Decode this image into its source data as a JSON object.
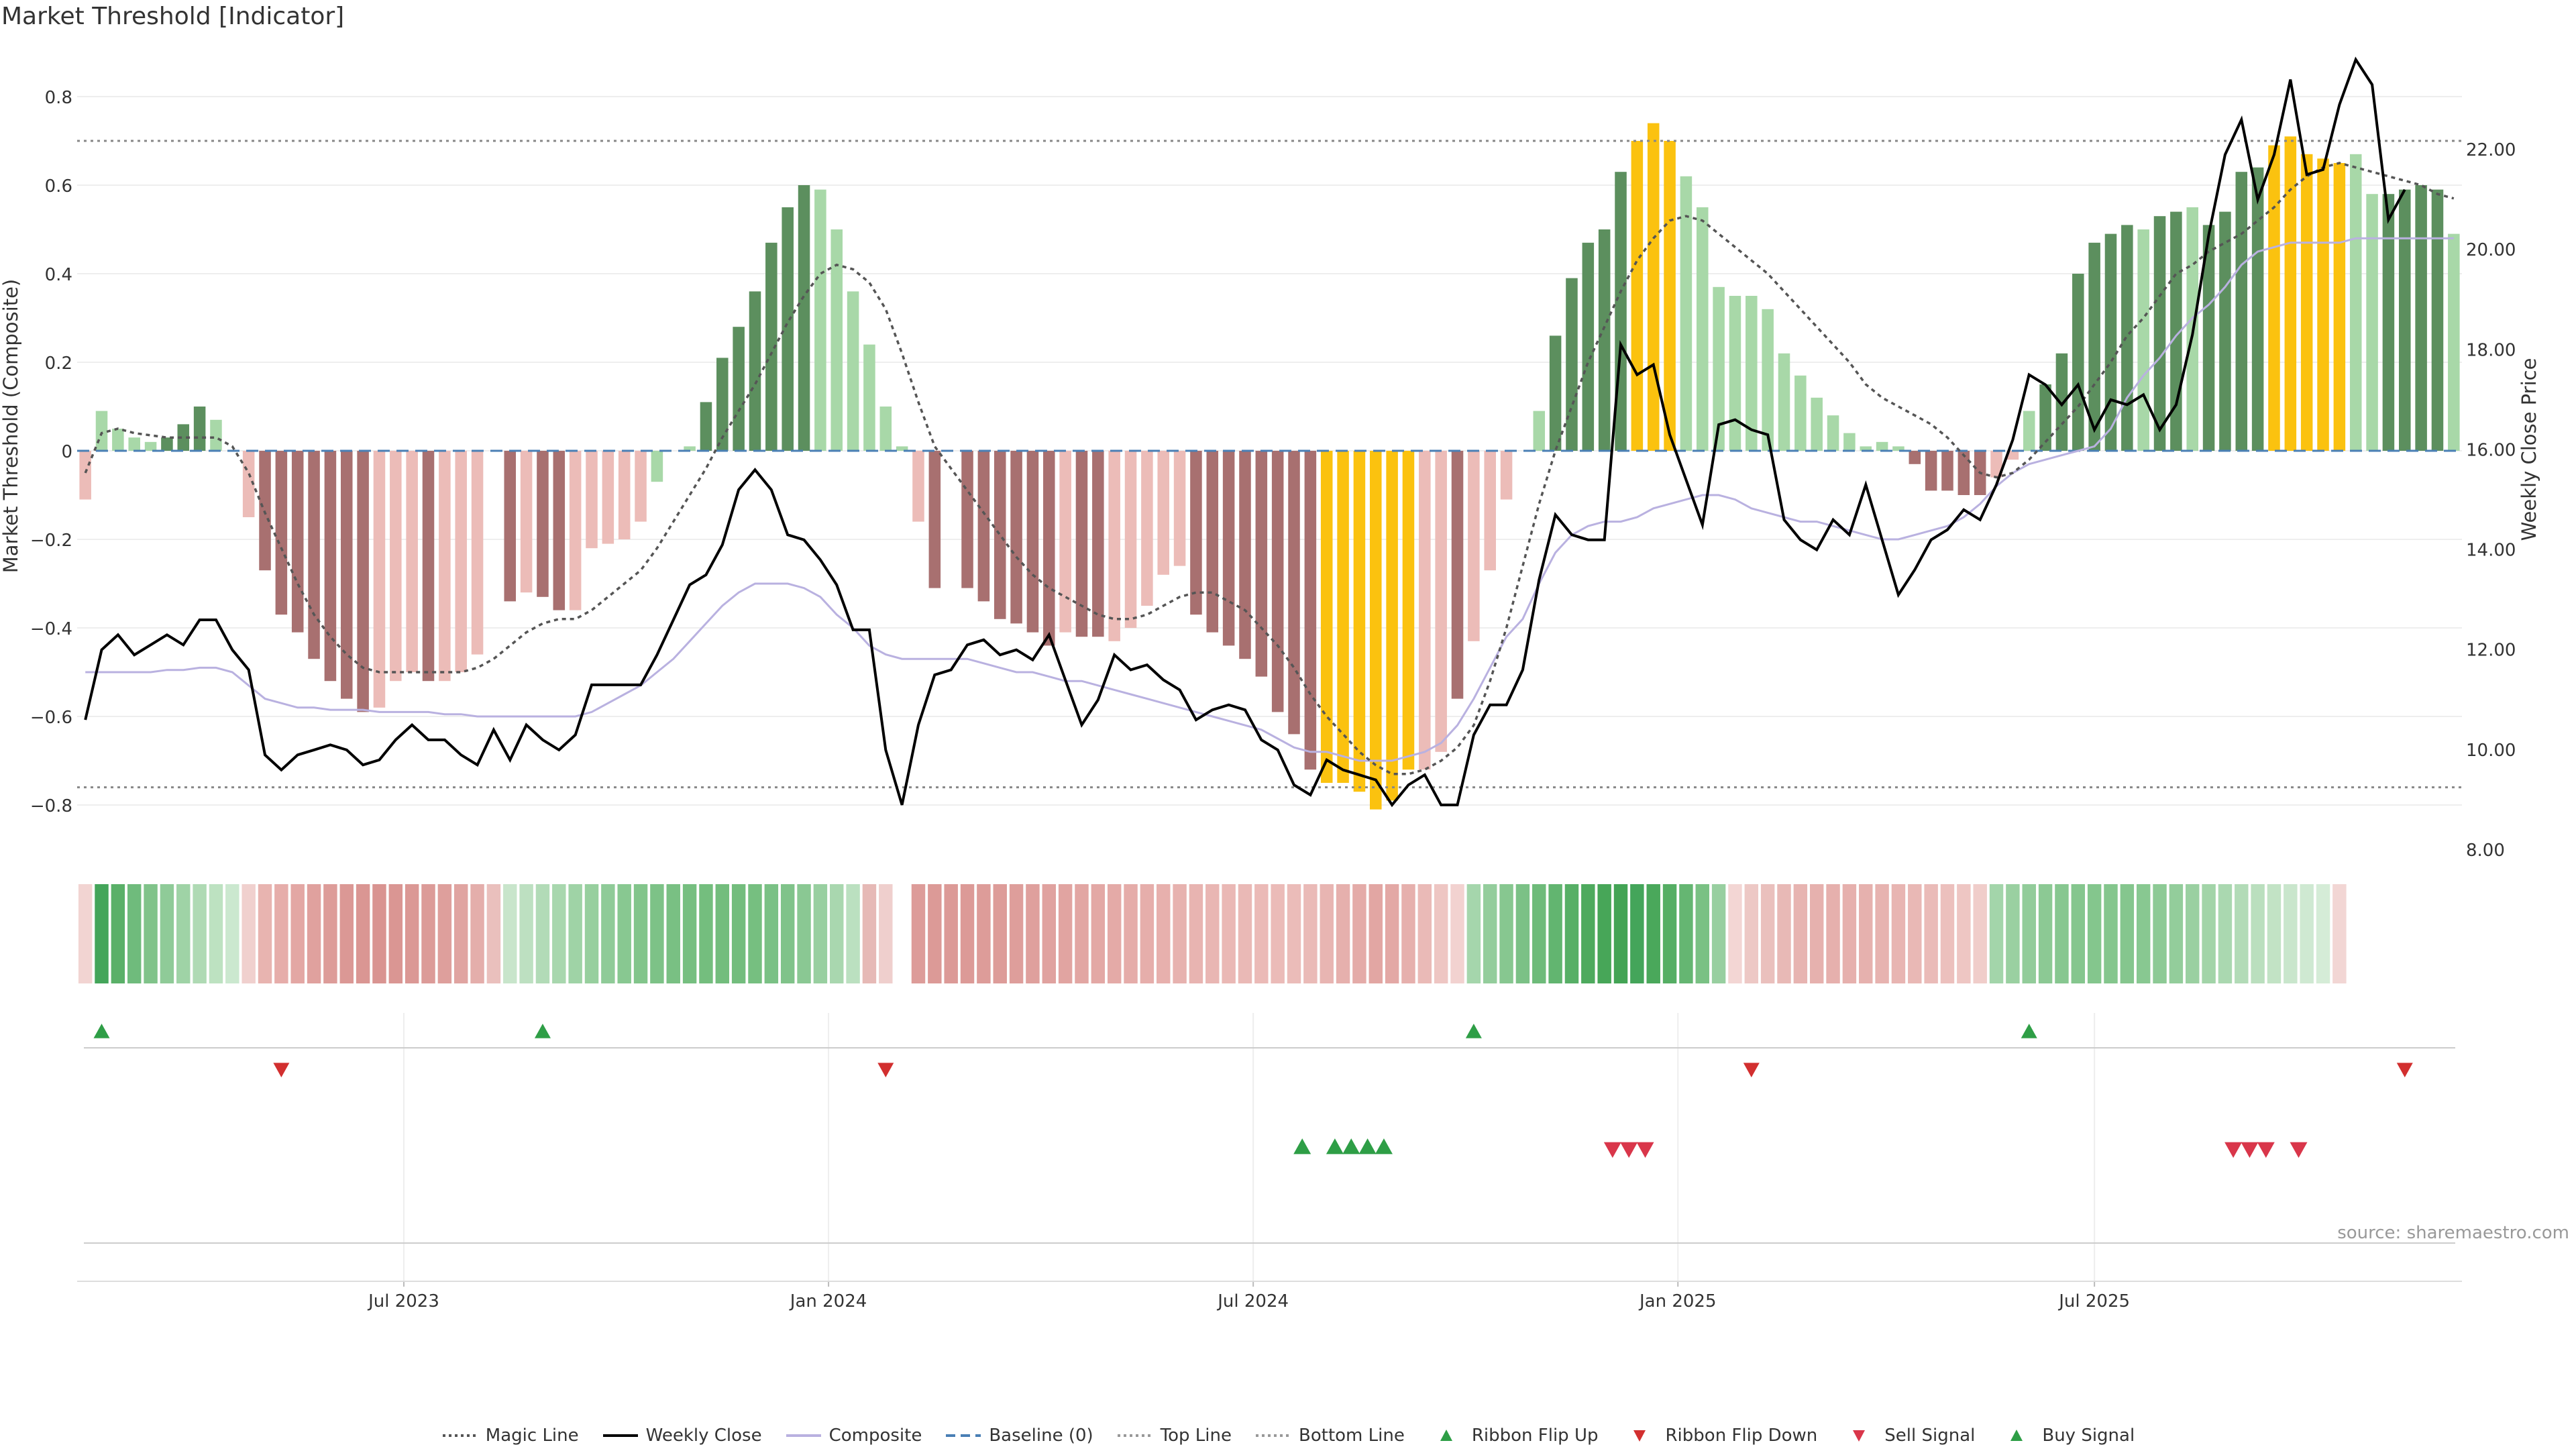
{
  "title": "Market Threshold [Indicator]",
  "source": "source: sharemaestro.com",
  "chart_data": {
    "type": "bar",
    "y_left_label": "Market Threshold (Composite)",
    "y_right_label": "Weekly Close Price",
    "y_left_ticks": [
      "0.8",
      "0.6",
      "0.4",
      "0.2",
      "0",
      "−0.2",
      "−0.4",
      "−0.6",
      "−0.8"
    ],
    "y_left_tick_values": [
      0.8,
      0.6,
      0.4,
      0.2,
      0,
      -0.2,
      -0.4,
      -0.6,
      -0.8
    ],
    "y_right_ticks": [
      "22.00",
      "20.00",
      "18.00",
      "16.00",
      "14.00",
      "12.00",
      "10.00",
      "8.00"
    ],
    "y_right_tick_values": [
      22,
      20,
      18,
      16,
      14,
      12,
      10,
      8
    ],
    "ylim_left": [
      -0.9,
      0.9
    ],
    "ylim_right": [
      8,
      24
    ],
    "x_ticks": [
      "Jul 2023",
      "Jan 2024",
      "Jul 2024",
      "Jan 2025",
      "Jul 2025"
    ],
    "x_tick_weeks": [
      19.5,
      45.5,
      71.5,
      97.5,
      123
    ],
    "top_line": 0.7,
    "bottom_line": -0.76,
    "bar_colors": {
      "dark_green": "#5c8f5e",
      "light_green": "#a8d8a8",
      "dark_red": "#a87070",
      "light_red": "#ecbcb8",
      "gold": "#fbc20f"
    },
    "composite": [
      -0.11,
      0.09,
      0.05,
      0.03,
      0.02,
      0.03,
      0.06,
      0.1,
      0.07,
      0.0,
      -0.15,
      -0.27,
      -0.37,
      -0.41,
      -0.47,
      -0.52,
      -0.56,
      -0.59,
      -0.58,
      -0.52,
      -0.5,
      -0.52,
      -0.52,
      -0.5,
      -0.46,
      0.0,
      -0.34,
      -0.32,
      -0.33,
      -0.36,
      -0.36,
      -0.22,
      -0.21,
      -0.2,
      -0.16,
      -0.07,
      0.0,
      0.01,
      0.11,
      0.21,
      0.28,
      0.36,
      0.47,
      0.55,
      0.6,
      0.59,
      0.5,
      0.36,
      0.24,
      0.1,
      0.01,
      -0.16,
      -0.31,
      0.0,
      -0.31,
      -0.34,
      -0.38,
      -0.39,
      -0.41,
      -0.44,
      -0.41,
      -0.42,
      -0.42,
      -0.43,
      -0.4,
      -0.35,
      -0.28,
      -0.26,
      -0.37,
      -0.41,
      -0.44,
      -0.47,
      -0.51,
      -0.59,
      -0.64,
      -0.72,
      -0.75,
      -0.75,
      -0.77,
      -0.81,
      -0.79,
      -0.72,
      -0.72,
      -0.68,
      -0.56,
      -0.43,
      -0.27,
      -0.11,
      0.0,
      0.09,
      0.26,
      0.39,
      0.47,
      0.5,
      0.63,
      0.7,
      0.74,
      0.7,
      0.62,
      0.55,
      0.37,
      0.35,
      0.35,
      0.32,
      0.22,
      0.17,
      0.12,
      0.08,
      0.04,
      0.01,
      0.02,
      0.01,
      -0.03,
      -0.09,
      -0.09,
      -0.1,
      -0.1,
      -0.06,
      -0.02,
      0.09,
      0.15,
      0.22,
      0.4,
      0.47,
      0.49,
      0.51,
      0.5,
      0.53,
      0.54,
      0.55,
      0.51,
      0.54,
      0.63,
      0.64,
      0.69,
      0.71,
      0.67,
      0.66,
      0.65,
      0.67,
      0.58,
      0.58,
      0.59,
      0.6,
      0.59,
      0.49
    ],
    "bar_color_keys": [
      "r",
      "g",
      "g",
      "g",
      "g",
      "G",
      "G",
      "G",
      "g",
      "g",
      "r",
      "R",
      "R",
      "R",
      "R",
      "R",
      "R",
      "R",
      "r",
      "r",
      "r",
      "R",
      "r",
      "r",
      "r",
      "g",
      "R",
      "r",
      "R",
      "R",
      "r",
      "r",
      "r",
      "r",
      "r",
      "g",
      "g",
      "g",
      "G",
      "G",
      "G",
      "G",
      "G",
      "G",
      "G",
      "g",
      "g",
      "g",
      "g",
      "g",
      "g",
      "r",
      "R",
      "g",
      "R",
      "R",
      "R",
      "R",
      "R",
      "R",
      "r",
      "R",
      "R",
      "r",
      "r",
      "r",
      "r",
      "r",
      "R",
      "R",
      "R",
      "R",
      "R",
      "R",
      "R",
      "R",
      "Y",
      "Y",
      "Y",
      "Y",
      "Y",
      "Y",
      "r",
      "r",
      "R",
      "r",
      "r",
      "r",
      "r",
      "g",
      "G",
      "G",
      "G",
      "G",
      "G",
      "Y",
      "Y",
      "Y",
      "g",
      "g",
      "g",
      "g",
      "g",
      "g",
      "g",
      "g",
      "g",
      "g",
      "g",
      "g",
      "g",
      "g",
      "R",
      "R",
      "R",
      "R",
      "R",
      "r",
      "r",
      "g",
      "G",
      "G",
      "G",
      "G",
      "G",
      "G",
      "g",
      "G",
      "G",
      "g",
      "G",
      "G",
      "G",
      "G",
      "Y",
      "Y",
      "Y",
      "Y",
      "Y",
      "g",
      "g",
      "G",
      "G",
      "G",
      "G",
      "g"
    ],
    "magic_line": [
      -0.05,
      0.04,
      0.05,
      0.04,
      0.035,
      0.03,
      0.03,
      0.03,
      0.03,
      0.01,
      -0.05,
      -0.14,
      -0.22,
      -0.3,
      -0.37,
      -0.42,
      -0.46,
      -0.49,
      -0.5,
      -0.5,
      -0.5,
      -0.5,
      -0.5,
      -0.5,
      -0.49,
      -0.47,
      -0.44,
      -0.41,
      -0.39,
      -0.38,
      -0.38,
      -0.36,
      -0.33,
      -0.3,
      -0.27,
      -0.22,
      -0.16,
      -0.1,
      -0.04,
      0.03,
      0.09,
      0.15,
      0.22,
      0.29,
      0.35,
      0.4,
      0.42,
      0.41,
      0.38,
      0.32,
      0.22,
      0.11,
      0.01,
      -0.04,
      -0.09,
      -0.14,
      -0.19,
      -0.24,
      -0.28,
      -0.31,
      -0.33,
      -0.35,
      -0.37,
      -0.38,
      -0.38,
      -0.37,
      -0.35,
      -0.33,
      -0.32,
      -0.32,
      -0.34,
      -0.36,
      -0.4,
      -0.44,
      -0.49,
      -0.55,
      -0.6,
      -0.64,
      -0.68,
      -0.71,
      -0.73,
      -0.73,
      -0.72,
      -0.7,
      -0.67,
      -0.62,
      -0.52,
      -0.4,
      -0.26,
      -0.12,
      0.0,
      0.1,
      0.2,
      0.28,
      0.36,
      0.43,
      0.48,
      0.52,
      0.53,
      0.52,
      0.49,
      0.46,
      0.43,
      0.4,
      0.36,
      0.32,
      0.28,
      0.24,
      0.2,
      0.15,
      0.12,
      0.1,
      0.08,
      0.06,
      0.03,
      -0.01,
      -0.05,
      -0.06,
      -0.05,
      -0.02,
      0.02,
      0.06,
      0.1,
      0.15,
      0.2,
      0.26,
      0.3,
      0.35,
      0.4,
      0.42,
      0.45,
      0.47,
      0.49,
      0.52,
      0.55,
      0.59,
      0.62,
      0.64,
      0.65,
      0.64,
      0.63,
      0.62,
      0.61,
      0.6,
      0.58,
      0.57
    ],
    "weekly_close": [
      10.6,
      12.0,
      12.3,
      11.9,
      12.1,
      12.3,
      12.1,
      12.6,
      12.6,
      12.0,
      11.6,
      9.9,
      9.6,
      9.9,
      10.0,
      10.1,
      10.0,
      9.7,
      9.8,
      10.2,
      10.5,
      10.2,
      10.2,
      9.9,
      9.7,
      10.4,
      9.8,
      10.5,
      10.2,
      10.0,
      10.3,
      11.3,
      11.3,
      11.3,
      11.3,
      11.9,
      12.6,
      13.3,
      13.5,
      14.1,
      15.2,
      15.6,
      15.2,
      14.3,
      14.2,
      13.8,
      13.3,
      12.4,
      12.4,
      10.0,
      8.9,
      10.5,
      11.5,
      11.6,
      12.1,
      12.2,
      11.9,
      12.0,
      11.8,
      12.3,
      11.4,
      10.5,
      11.0,
      11.9,
      11.6,
      11.7,
      11.4,
      11.2,
      10.6,
      10.8,
      10.9,
      10.8,
      10.2,
      10.0,
      9.3,
      9.1,
      9.8,
      9.6,
      9.5,
      9.4,
      8.9,
      9.3,
      9.5,
      8.9,
      8.9,
      10.3,
      10.9,
      10.9,
      11.6,
      13.4,
      14.7,
      14.3,
      14.2,
      14.2,
      18.1,
      17.5,
      17.7,
      16.3,
      15.4,
      14.5,
      16.5,
      16.6,
      16.4,
      16.3,
      14.6,
      14.2,
      14.0,
      14.6,
      14.3,
      15.3,
      14.2,
      13.1,
      13.6,
      14.2,
      14.4,
      14.8,
      14.6,
      15.3,
      16.2,
      17.5,
      17.3,
      16.9,
      17.3,
      16.4,
      17.0,
      16.9,
      17.1,
      16.4,
      16.9,
      18.3,
      20.3,
      21.9,
      22.6,
      21.0,
      21.9,
      23.4,
      21.5,
      21.6,
      22.9,
      23.8,
      23.3,
      20.6,
      21.2
    ],
    "composite_ma": [
      -0.5,
      -0.5,
      -0.5,
      -0.5,
      -0.5,
      -0.495,
      -0.495,
      -0.49,
      -0.49,
      -0.5,
      -0.53,
      -0.56,
      -0.57,
      -0.58,
      -0.58,
      -0.585,
      -0.585,
      -0.585,
      -0.59,
      -0.59,
      -0.59,
      -0.59,
      -0.595,
      -0.595,
      -0.6,
      -0.6,
      -0.6,
      -0.6,
      -0.6,
      -0.6,
      -0.6,
      -0.59,
      -0.57,
      -0.55,
      -0.53,
      -0.5,
      -0.47,
      -0.43,
      -0.39,
      -0.35,
      -0.32,
      -0.3,
      -0.3,
      -0.3,
      -0.31,
      -0.33,
      -0.37,
      -0.4,
      -0.44,
      -0.46,
      -0.47,
      -0.47,
      -0.47,
      -0.47,
      -0.47,
      -0.48,
      -0.49,
      -0.5,
      -0.5,
      -0.51,
      -0.52,
      -0.52,
      -0.53,
      -0.54,
      -0.55,
      -0.56,
      -0.57,
      -0.58,
      -0.59,
      -0.6,
      -0.61,
      -0.62,
      -0.63,
      -0.65,
      -0.67,
      -0.68,
      -0.68,
      -0.69,
      -0.7,
      -0.7,
      -0.7,
      -0.69,
      -0.68,
      -0.66,
      -0.62,
      -0.56,
      -0.49,
      -0.42,
      -0.38,
      -0.3,
      -0.23,
      -0.19,
      -0.17,
      -0.16,
      -0.16,
      -0.15,
      -0.13,
      -0.12,
      -0.11,
      -0.1,
      -0.1,
      -0.11,
      -0.13,
      -0.14,
      -0.15,
      -0.16,
      -0.16,
      -0.17,
      -0.18,
      -0.19,
      -0.2,
      -0.2,
      -0.19,
      -0.18,
      -0.17,
      -0.15,
      -0.12,
      -0.08,
      -0.05,
      -0.03,
      -0.02,
      -0.01,
      0.0,
      0.01,
      0.05,
      0.12,
      0.17,
      0.21,
      0.26,
      0.3,
      0.33,
      0.37,
      0.42,
      0.45,
      0.46,
      0.47,
      0.47,
      0.47,
      0.47,
      0.48,
      0.48,
      0.48,
      0.48,
      0.48,
      0.48,
      0.48
    ],
    "ribbon_colors": [
      "#f2d4d2",
      "#44a55a",
      "#5ab068",
      "#6fbb7c",
      "#80c38a",
      "#8fcb98",
      "#9fd3a6",
      "#afdab4",
      "#bde2c1",
      "#cbe8cf",
      "#f0d0ce",
      "#e8b4b0",
      "#e6adaa",
      "#e3a7a4",
      "#e0a19e",
      "#dd9c99",
      "#db9895",
      "#da9693",
      "#d99491",
      "#da9693",
      "#db9895",
      "#dc9b98",
      "#de9f9c",
      "#e0a4a1",
      "#e4aeab",
      "#eac0bd",
      "#c8e5cb",
      "#bde0c1",
      "#b2dbb7",
      "#a8d7ae",
      "#9fd3a6",
      "#97cf9e",
      "#8fcb98",
      "#88c891",
      "#82c58b",
      "#7dc287",
      "#79c083",
      "#76bf80",
      "#74be7e",
      "#73bd7d",
      "#73bd7d",
      "#76bf80",
      "#7ac185",
      "#80c38a",
      "#8ac893",
      "#98cfa0",
      "#a9d7af",
      "#bbe0c0",
      "#e6b9b6",
      "#efcfcd",
      "#ffffff",
      "#dd9c99",
      "#dc9a97",
      "#dc9a97",
      "#dc9a97",
      "#dd9c99",
      "#dd9c99",
      "#de9e9b",
      "#dfa09d",
      "#e0a29f",
      "#e1a4a1",
      "#e2a6a3",
      "#e3a8a5",
      "#e4aaa7",
      "#e5aca9",
      "#e6aeab",
      "#e7b0ad",
      "#e7b2af",
      "#e8b4b1",
      "#e9b6b3",
      "#eab8b5",
      "#eab9b6",
      "#ebbab7",
      "#ebbbb8",
      "#ebbcb9",
      "#eabab7",
      "#e8b5b2",
      "#e6b0ad",
      "#e4aba8",
      "#e2a6a3",
      "#e3a8a5",
      "#e6b0ad",
      "#eabab7",
      "#eec6c3",
      "#f2d2d0",
      "#a5d6ac",
      "#94cd9c",
      "#87c790",
      "#7bc186",
      "#6ebb7a",
      "#62b570",
      "#57af66",
      "#4eaa5e",
      "#47a658",
      "#43a455",
      "#44a55a",
      "#4aa85b",
      "#55ae64",
      "#65b672",
      "#7ac184",
      "#98cfa0",
      "#f3d6d4",
      "#edc8c5",
      "#eac0bd",
      "#e8b9b6",
      "#e7b4b1",
      "#e6b1ae",
      "#e6b0ad",
      "#e6b0ad",
      "#e6b1ae",
      "#e7b3b0",
      "#e8b5b2",
      "#e9b8b5",
      "#eabbb8",
      "#ecc0bd",
      "#eec6c3",
      "#f0cdca",
      "#a3d5aa",
      "#9ad0a1",
      "#92cc9a",
      "#8cc994",
      "#87c790",
      "#85c68e",
      "#84c68d",
      "#84c68d",
      "#85c68e",
      "#88c891",
      "#8dca95",
      "#93cd9b",
      "#9ad0a1",
      "#a2d4a8",
      "#aad8b0",
      "#b2dbb7",
      "#badfbe",
      "#c2e3c5",
      "#c9e6cc",
      "#cfe9d2",
      "#d5ecd7",
      "#f2d6d4"
    ],
    "ribbon_gap_index": 50,
    "ribbon_flip_up_weeks": [
      1,
      28,
      85,
      119
    ],
    "ribbon_flip_down_weeks": [
      12,
      49,
      102,
      142
    ],
    "buy_signal_weeks": [
      74.5,
      76.5,
      77.5,
      78.5,
      79.5
    ],
    "sell_signal_weeks": [
      93.5,
      94.5,
      95.5,
      131.5,
      132.5,
      133.5,
      135.5
    ],
    "legend": [
      {
        "label": "Magic Line",
        "kind": "dotted-line",
        "color": "#555555"
      },
      {
        "label": "Weekly Close",
        "kind": "solid-line",
        "color": "#000000"
      },
      {
        "label": "Composite",
        "kind": "solid-line",
        "color": "#b9b1e0"
      },
      {
        "label": "Baseline (0)",
        "kind": "dashed-line",
        "color": "#4a7fb5"
      },
      {
        "label": "Top Line",
        "kind": "dotted-line",
        "color": "#999999"
      },
      {
        "label": "Bottom Line",
        "kind": "dotted-line",
        "color": "#999999"
      },
      {
        "label": "Ribbon Flip Up",
        "kind": "triangle-up",
        "color": "#2e9e46"
      },
      {
        "label": "Ribbon Flip Down",
        "kind": "triangle-down",
        "color": "#d22f2f"
      },
      {
        "label": "Sell Signal",
        "kind": "triangle-down",
        "color": "#d9364a"
      },
      {
        "label": "Buy Signal",
        "kind": "triangle-up",
        "color": "#2e9e46"
      }
    ]
  }
}
